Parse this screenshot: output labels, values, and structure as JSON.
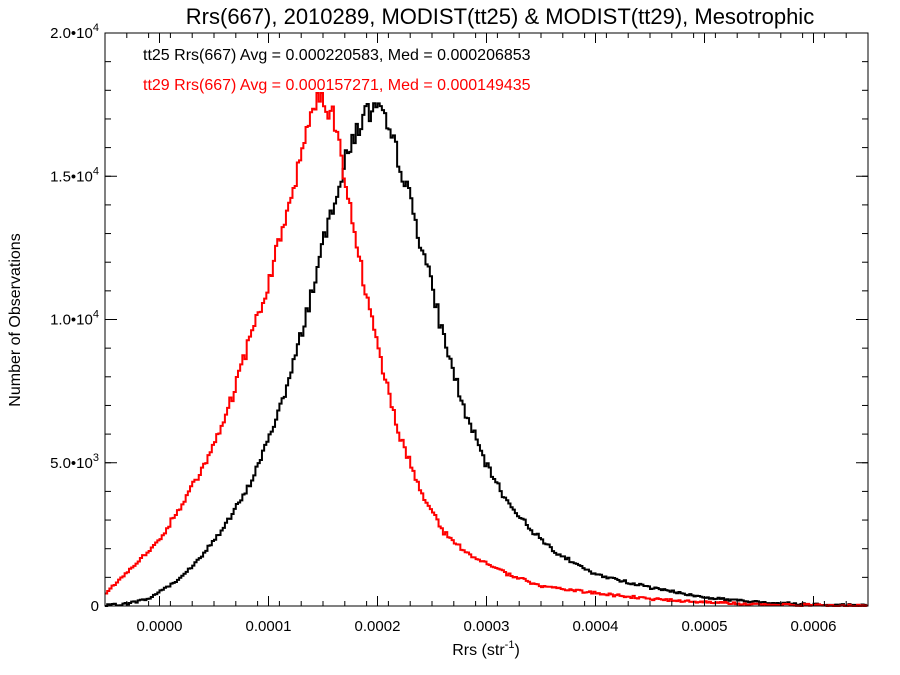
{
  "chart_data": {
    "type": "line",
    "style": "histogram-step",
    "title": "Rrs(667), 2010289, MODIST(tt25) & MODIST(tt29), Mesotrophic",
    "xlabel": "Rrs (str",
    "xlabel_sup": "-1",
    "xlabel_tail": ")",
    "ylabel": "Number of Observations",
    "xlim": [
      -5e-05,
      0.00065
    ],
    "ylim": [
      0,
      20000
    ],
    "x_ticks": [
      {
        "value": 0.0,
        "label": "0.0000"
      },
      {
        "value": 0.0001,
        "label": "0.0001"
      },
      {
        "value": 0.0002,
        "label": "0.0002"
      },
      {
        "value": 0.0003,
        "label": "0.0003"
      },
      {
        "value": 0.0004,
        "label": "0.0004"
      },
      {
        "value": 0.0005,
        "label": "0.0005"
      },
      {
        "value": 0.0006,
        "label": "0.0006"
      }
    ],
    "y_ticks": [
      {
        "value": 0,
        "mant": "0",
        "exp": ""
      },
      {
        "value": 5000,
        "mant": "5.0•10",
        "exp": "3"
      },
      {
        "value": 10000,
        "mant": "1.0•10",
        "exp": "4"
      },
      {
        "value": 15000,
        "mant": "1.5•10",
        "exp": "4"
      },
      {
        "value": 20000,
        "mant": "2.0•10",
        "exp": "4"
      }
    ],
    "grid": false,
    "legend": "top-left",
    "annotations": [
      {
        "text": "tt25 Rrs(667) Avg = 0.000220583, Med = 0.000206853",
        "color": "#000000"
      },
      {
        "text": "tt29 Rrs(667) Avg = 0.000157271, Med = 0.000149435",
        "color": "#ff0000"
      }
    ],
    "bin_width": 2e-06,
    "series": [
      {
        "color": "#000000",
        "x": [
          -5e-05,
          -3e-05,
          -1e-05,
          0.0,
          2e-05,
          4e-05,
          6e-05,
          8e-05,
          0.0001,
          0.00012,
          0.00014,
          0.00016,
          0.00018,
          0.00019,
          0.0002,
          0.00021,
          0.00022,
          0.00024,
          0.00026,
          0.00028,
          0.0003,
          0.00032,
          0.00034,
          0.00036,
          0.00038,
          0.0004,
          0.00045,
          0.0005,
          0.00055,
          0.0006,
          0.00065
        ],
        "values": [
          10,
          80,
          250,
          500,
          1000,
          1800,
          2800,
          4000,
          5800,
          8000,
          11000,
          14200,
          16600,
          17200,
          17300,
          16600,
          15600,
          12700,
          9500,
          6800,
          4900,
          3600,
          2700,
          2000,
          1500,
          1100,
          650,
          300,
          130,
          60,
          20
        ]
      },
      {
        "color": "#ff0000",
        "x": [
          -5e-05,
          -4e-05,
          -2e-05,
          0.0,
          2e-05,
          4e-05,
          6e-05,
          8e-05,
          0.0001,
          0.00012,
          0.00013,
          0.00014,
          0.00015,
          0.00016,
          0.00017,
          0.00018,
          0.0002,
          0.00022,
          0.00024,
          0.00026,
          0.00028,
          0.0003,
          0.00032,
          0.00035,
          0.0004,
          0.00045,
          0.0005,
          0.00055,
          0.0006,
          0.00065
        ],
        "values": [
          400,
          800,
          1500,
          2300,
          3500,
          4800,
          6500,
          8900,
          11300,
          14200,
          15800,
          17300,
          17900,
          17000,
          14800,
          12800,
          9000,
          6000,
          4000,
          2600,
          1900,
          1500,
          1100,
          700,
          450,
          250,
          130,
          60,
          30,
          10
        ]
      }
    ]
  }
}
